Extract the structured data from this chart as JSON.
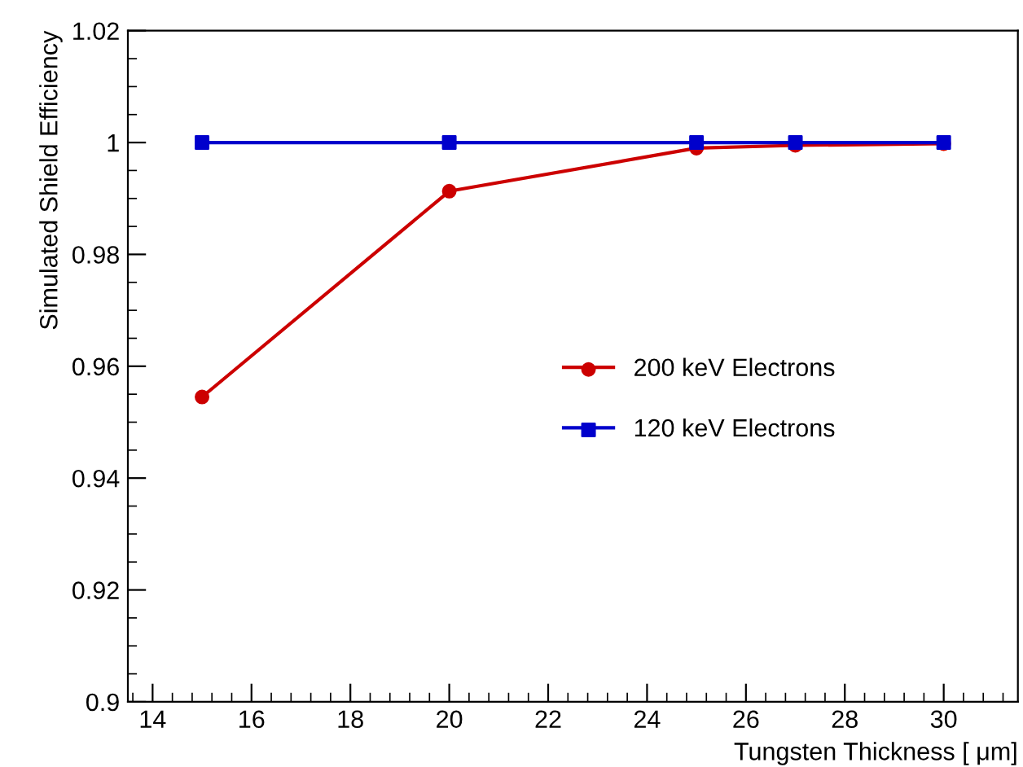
{
  "chart_data": {
    "type": "line",
    "xlabel": "Tungsten Thickness [ μm]",
    "ylabel": "Simulated Shield Efficiency",
    "x": [
      15,
      20,
      25,
      27,
      30
    ],
    "series": [
      {
        "name": "200 keV Electrons",
        "color": "#cc0000",
        "marker": "circle",
        "values": [
          0.9545,
          0.9913,
          0.999,
          0.9995,
          0.9998
        ]
      },
      {
        "name": "120 keV Electrons",
        "color": "#0000cc",
        "marker": "square",
        "values": [
          1,
          1,
          1,
          1,
          1
        ]
      }
    ],
    "xlim": [
      13.5,
      31.5
    ],
    "xticks": [
      14,
      16,
      18,
      20,
      22,
      24,
      26,
      28,
      30
    ],
    "ylim": [
      0.9,
      1.02
    ],
    "yticks": [
      0.9,
      0.92,
      0.94,
      0.96,
      0.98,
      1,
      1.02
    ],
    "grid": false,
    "legend": "center right",
    "line_style": "solid"
  }
}
